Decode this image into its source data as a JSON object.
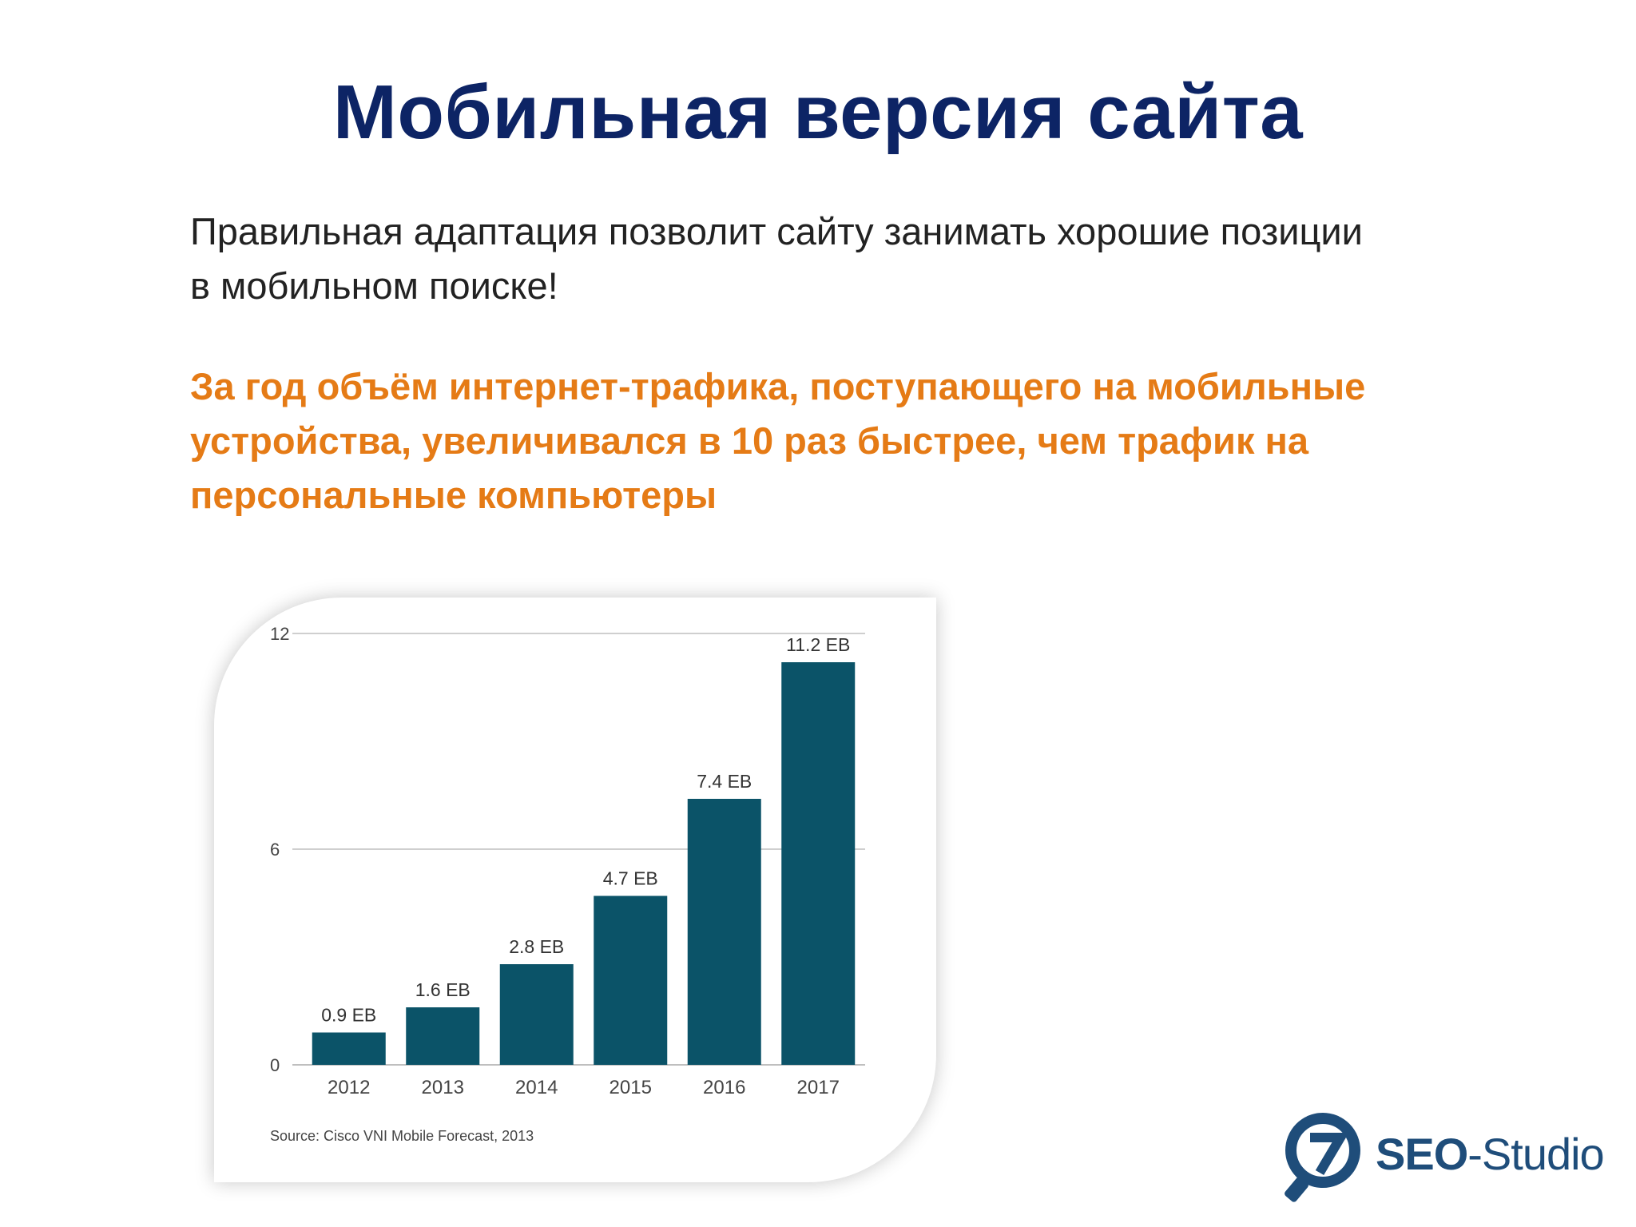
{
  "slide": {
    "title": "Мобильная версия сайта",
    "intro": "Правильная адаптация позволит сайту занимать хорошие позиции в мобильном поиске!",
    "highlight": "За год объём интернет-трафика, поступающего на мобильные устройства, увеличивался в 10 раз быстрее, чем трафик на персональные компьютеры"
  },
  "chart_data": {
    "type": "bar",
    "categories": [
      "2012",
      "2013",
      "2014",
      "2015",
      "2016",
      "2017"
    ],
    "values": [
      0.9,
      1.6,
      2.8,
      4.7,
      7.4,
      11.2
    ],
    "data_labels": [
      "0.9 EB",
      "1.6 EB",
      "2.8 EB",
      "4.7 EB",
      "7.4 EB",
      "11.2 EB"
    ],
    "yticks": [
      "0",
      "6",
      "12"
    ],
    "ylim": [
      0,
      12
    ],
    "title": "",
    "xlabel": "",
    "ylabel": "",
    "grid": true,
    "bar_color": "#0b5368",
    "source": "Source: Cisco VNI Mobile Forecast, 2013"
  },
  "logo": {
    "brand_bold": "SEO",
    "brand_rest": "-Studio",
    "colors": {
      "primary": "#1f4d7a",
      "accent": "#1f4d7a"
    }
  },
  "colors": {
    "title": "#0d2465",
    "highlight": "#e57b16",
    "body_text": "#222222"
  }
}
